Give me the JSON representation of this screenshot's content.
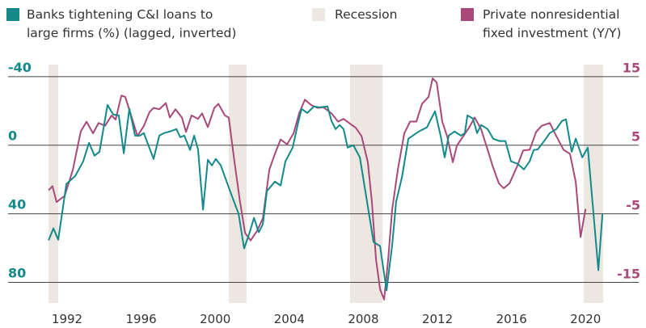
{
  "chart_data": {
    "type": "line",
    "xlim": [
      1990.34,
      2022.87
    ],
    "xticks": [
      1992,
      1996,
      2000,
      2004,
      2008,
      2012,
      2016,
      2020
    ],
    "ylim": [
      92,
      -47
    ],
    "yticks": [
      -40,
      0,
      40,
      80
    ],
    "y2lim": [
      -17.9,
      16.8
    ],
    "y2ticks": [
      15,
      5,
      -5,
      -15
    ],
    "grid": true,
    "recessions": {
      "name": "Recession",
      "color": "#ece7e1",
      "periods": [
        [
          1991.0,
          1991.52
        ],
        [
          2000.73,
          2001.69
        ],
        [
          2007.28,
          2009.03
        ],
        [
          2019.9,
          2020.95
        ]
      ]
    },
    "series": [
      {
        "name": "Banks tightening C&I loans to\nlarge firms (%) (lagged, inverted)",
        "color": "#14898a",
        "axis": "y",
        "x": [
          1991.0,
          1991.26,
          1991.52,
          1991.96,
          1992.44,
          1992.87,
          1993.18,
          1993.48,
          1993.75,
          1994.18,
          1994.49,
          1994.79,
          1995.06,
          1995.36,
          1995.67,
          1995.93,
          1996.14,
          1996.67,
          1996.98,
          1997.24,
          1997.55,
          1997.9,
          1998.11,
          1998.33,
          1998.64,
          1998.86,
          1999.07,
          1999.34,
          1999.6,
          1999.82,
          2000.03,
          2000.3,
          2000.82,
          2001.26,
          2001.56,
          2001.83,
          2002.09,
          2002.35,
          2002.57,
          2002.79,
          2003.22,
          2003.53,
          2003.79,
          2004.18,
          2004.45,
          2004.66,
          2004.97,
          2005.32,
          2005.62,
          2006.06,
          2006.28,
          2006.5,
          2006.72,
          2006.93,
          2007.15,
          2007.46,
          2007.81,
          2008.55,
          2008.9,
          2009.25,
          2009.55,
          2009.77,
          2010.08,
          2010.43,
          2010.87,
          2011.08,
          2011.43,
          2011.87,
          2012.17,
          2012.39,
          2012.61,
          2012.92,
          2013.27,
          2013.48,
          2013.62,
          2013.92,
          2014.14,
          2014.36,
          2014.71,
          2015.01,
          2015.36,
          2015.67,
          2015.97,
          2016.32,
          2016.67,
          2016.98,
          2017.2,
          2017.42,
          2017.76,
          2018.07,
          2018.42,
          2018.72,
          2018.94,
          2019.25,
          2019.47,
          2019.82,
          2020.12,
          2020.69,
          2020.91
        ],
        "values": [
          55.5,
          48.5,
          55.1,
          22.6,
          17.9,
          9.4,
          -1.4,
          6.1,
          3.8,
          -23.5,
          -17.9,
          -17.4,
          4.7,
          -21.2,
          -5.6,
          -5.6,
          -7.1,
          8.0,
          -5.6,
          -7.1,
          -8.0,
          -9.4,
          -4.7,
          -5.6,
          2.8,
          -5.6,
          2.4,
          37.6,
          8.5,
          11.8,
          8.0,
          11.8,
          27.3,
          40.0,
          60.2,
          51.8,
          42.4,
          50.8,
          46.1,
          26.8,
          21.2,
          23.5,
          9.4,
          1.4,
          -11.8,
          -21.2,
          -18.8,
          -22.6,
          -22.1,
          -22.6,
          -14.1,
          -9.4,
          -11.8,
          -9.4,
          1.4,
          0.0,
          7.1,
          56.5,
          58.8,
          84.7,
          58.8,
          32.9,
          18.8,
          -3.8,
          -7.1,
          -8.5,
          -10.4,
          -19.8,
          -5.6,
          7.1,
          -5.6,
          -8.0,
          -5.6,
          -7.1,
          -17.4,
          -15.5,
          -7.1,
          -11.8,
          -9.4,
          -3.8,
          -2.4,
          -2.4,
          9.4,
          10.8,
          14.1,
          9.4,
          2.8,
          2.4,
          -2.4,
          -7.1,
          -9.4,
          -14.1,
          -15.1,
          3.8,
          -3.8,
          7.1,
          1.4,
          72.9,
          40.0
        ]
      },
      {
        "name": "Private nonresidential\nfixed investment (Y/Y)",
        "color": "#a8497a",
        "axis": "y2",
        "x": [
          1991.0,
          1991.21,
          1991.43,
          1991.87,
          1992.31,
          1992.74,
          1993.05,
          1993.4,
          1993.7,
          1994.05,
          1994.4,
          1994.62,
          1994.93,
          1995.14,
          1995.49,
          1995.8,
          1996.15,
          1996.45,
          1996.67,
          1996.98,
          1997.33,
          1997.55,
          1997.85,
          1998.2,
          1998.42,
          1998.72,
          1999.07,
          1999.29,
          1999.6,
          1999.95,
          2000.17,
          2000.52,
          2000.73,
          2001.04,
          2001.34,
          2001.61,
          2001.91,
          2002.26,
          2002.57,
          2002.92,
          2003.22,
          2003.53,
          2003.88,
          2004.23,
          2004.53,
          2004.84,
          2005.19,
          2005.54,
          2005.84,
          2006.28,
          2006.63,
          2006.93,
          2007.28,
          2007.59,
          2007.9,
          2008.24,
          2008.46,
          2008.68,
          2008.9,
          2009.12,
          2009.34,
          2009.55,
          2009.86,
          2010.21,
          2010.52,
          2010.86,
          2011.17,
          2011.52,
          2011.74,
          2011.96,
          2012.26,
          2012.52,
          2012.83,
          2013.05,
          2013.4,
          2013.7,
          2014.01,
          2014.36,
          2014.71,
          2015.01,
          2015.32,
          2015.58,
          2015.89,
          2016.32,
          2016.63,
          2016.98,
          2017.33,
          2017.63,
          2018.07,
          2018.42,
          2018.81,
          2019.16,
          2019.47,
          2019.73,
          2020.0
        ],
        "values": [
          -1.5,
          -0.9,
          -3.2,
          -2.3,
          1.5,
          7.1,
          8.5,
          6.8,
          8.3,
          7.9,
          9.4,
          8.8,
          12.3,
          12.1,
          9.1,
          6.4,
          7.9,
          9.9,
          10.5,
          10.3,
          11.2,
          9.1,
          10.3,
          9.1,
          7.0,
          9.4,
          8.9,
          9.7,
          7.7,
          10.5,
          11.1,
          9.4,
          9.1,
          2.6,
          -3.2,
          -7.7,
          -8.8,
          -7.4,
          -5.6,
          1.5,
          3.8,
          5.9,
          5.2,
          6.8,
          9.7,
          11.7,
          10.9,
          10.5,
          10.6,
          9.7,
          8.5,
          8.9,
          8.2,
          7.6,
          6.4,
          2.6,
          -3.2,
          -11.5,
          -15.9,
          -17.4,
          -11.5,
          -4.4,
          1.5,
          6.8,
          8.5,
          8.5,
          11.1,
          12.1,
          14.8,
          14.2,
          8.5,
          6.4,
          2.6,
          5.0,
          6.4,
          7.6,
          9.1,
          7.4,
          4.4,
          1.8,
          -0.5,
          -1.2,
          -0.5,
          2.1,
          4.3,
          4.4,
          7.0,
          7.9,
          8.3,
          6.4,
          4.4,
          3.8,
          -0.3,
          -8.3,
          -4.2
        ]
      }
    ]
  }
}
